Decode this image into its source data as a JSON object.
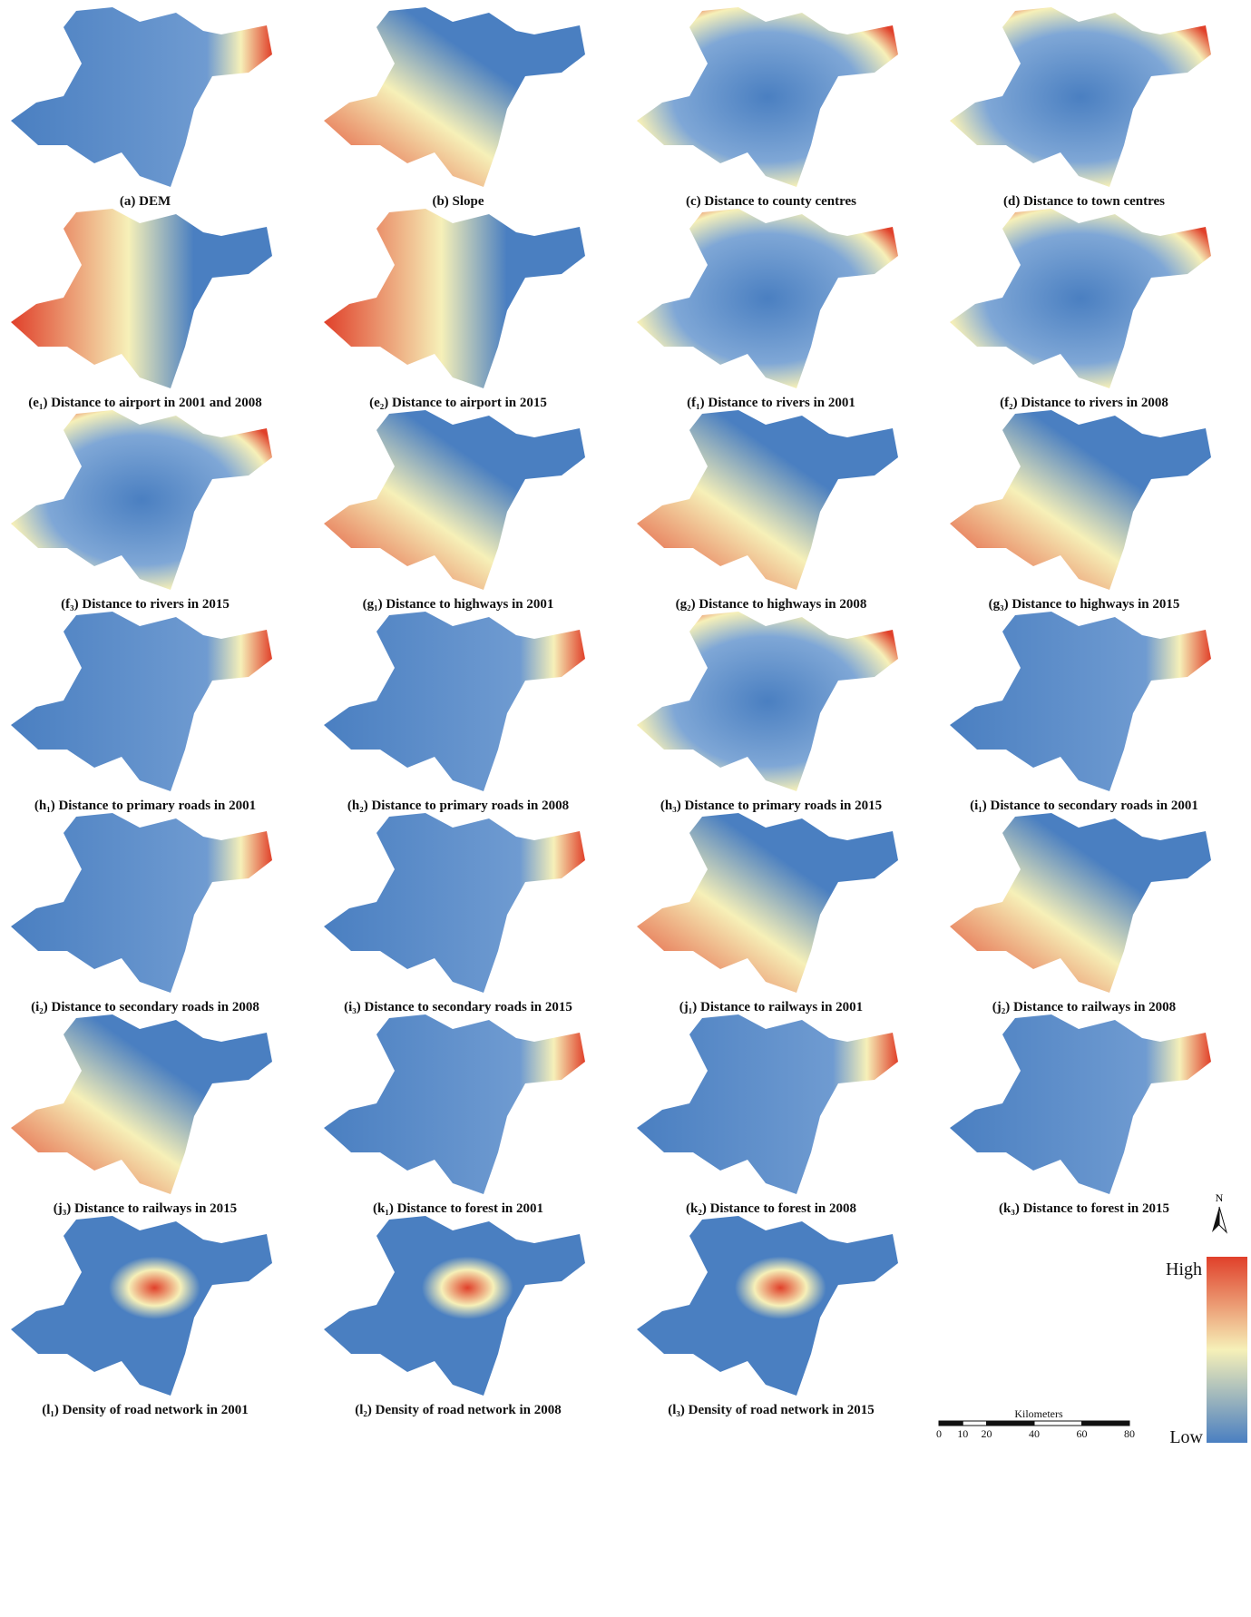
{
  "panels": [
    {
      "caption": "(a) DEM"
    },
    {
      "caption": "(b) Slope"
    },
    {
      "caption": "(c) Distance to county centres"
    },
    {
      "caption": "(d) Distance to town centres"
    },
    {
      "caption": "(e₁) Distance to airport in 2001 and 2008"
    },
    {
      "caption": "(e₂) Distance to airport in 2015"
    },
    {
      "caption": "(f₁) Distance to rivers in 2001"
    },
    {
      "caption": "(f₂) Distance to rivers in 2008"
    },
    {
      "caption": "(f₃) Distance to rivers in 2015"
    },
    {
      "caption": "(g₁) Distance to highways in 2001"
    },
    {
      "caption": "(g₂) Distance to highways in 2008"
    },
    {
      "caption": "(g₃) Distance to highways in 2015"
    },
    {
      "caption": "(h₁) Distance to primary roads in 2001"
    },
    {
      "caption": "(h₂) Distance to primary roads in 2008"
    },
    {
      "caption": "(h₃) Distance to primary roads in 2015"
    },
    {
      "caption": "(i₁) Distance to secondary roads in 2001"
    },
    {
      "caption": "(i₂) Distance to secondary roads in 2008"
    },
    {
      "caption": "(i₃) Distance to secondary roads in 2015"
    },
    {
      "caption": "(j₁) Distance to railways in 2001"
    },
    {
      "caption": "(j₂) Distance to railways in 2008"
    },
    {
      "caption": "(j₃) Distance to railways in 2015"
    },
    {
      "caption": "(k₁) Distance to forest in 2001"
    },
    {
      "caption": "(k₂) Distance to forest in 2008"
    },
    {
      "caption": "(k₃) Distance to forest in 2015"
    },
    {
      "caption": "(l₁) Density of road network in 2001"
    },
    {
      "caption": "(l₂) Density of road network in 2008"
    },
    {
      "caption": "(l₃) Density of road network in 2015"
    }
  ],
  "legend": {
    "high": "High",
    "low": "Low"
  },
  "north": "N",
  "scale_bar": {
    "title": "Kilometers",
    "ticks": [
      0,
      10,
      20,
      40,
      60,
      80
    ]
  }
}
